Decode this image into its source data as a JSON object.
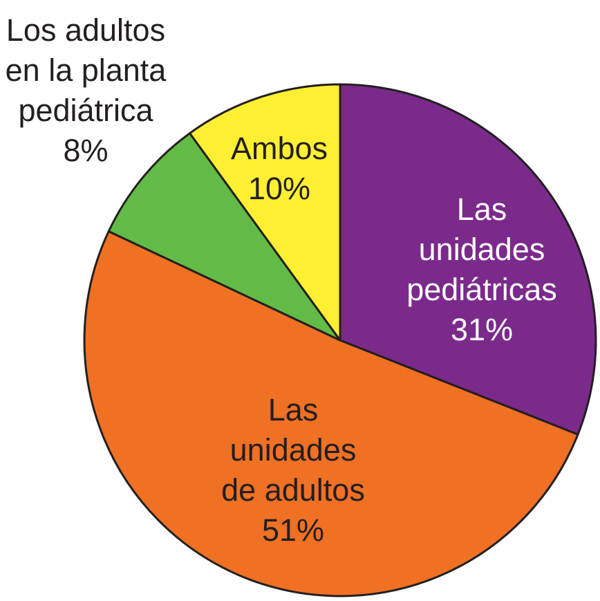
{
  "chart_data": {
    "type": "pie",
    "start_angle_deg": 90,
    "direction": "clockwise",
    "slices": [
      {
        "id": "pediatricas",
        "label_lines": [
          "Las",
          "unidades",
          "pediátricas"
        ],
        "value": 31,
        "value_label": "31%",
        "color": "#7b2a8c",
        "label_color": "#ffffff"
      },
      {
        "id": "adultos",
        "label_lines": [
          "Las",
          "unidades",
          "de adultos"
        ],
        "value": 51,
        "value_label": "51%",
        "color": "#f07024",
        "label_color": "#231f20"
      },
      {
        "id": "planta",
        "label_lines": [
          "Los adultos",
          "en la planta",
          "pediátrica"
        ],
        "value": 8,
        "value_label": "8%",
        "color": "#62bb46",
        "label_color": "#231f20"
      },
      {
        "id": "ambos",
        "label_lines": [
          "Ambos"
        ],
        "value": 10,
        "value_label": "10%",
        "color": "#ffef33",
        "label_color": "#231f20"
      }
    ]
  }
}
